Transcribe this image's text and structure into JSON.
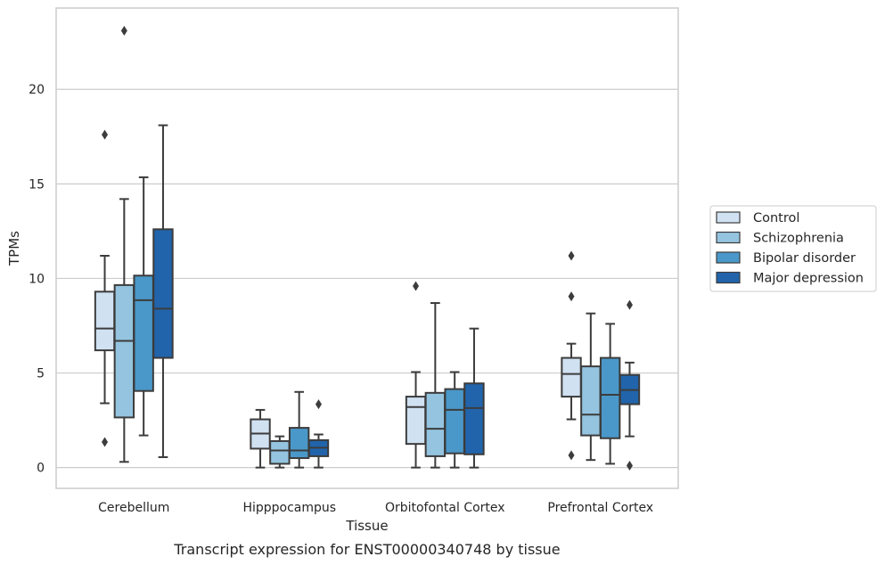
{
  "chart_data": {
    "type": "box",
    "caption": "Transcript expression for ENST00000340748 by tissue",
    "xlabel": "Tissue",
    "ylabel": "TPMs",
    "ylim": [
      -1.1,
      24.3
    ],
    "yticks": [
      0,
      5,
      10,
      15,
      20
    ],
    "grid": "horizontal",
    "legend": "right",
    "categories": [
      "Cerebellum",
      "Hipppocampus",
      "Orbitofontal Cortex",
      "Prefrontal Cortex"
    ],
    "series": [
      {
        "name": "Control",
        "color": "#d0e1f2",
        "boxes": [
          {
            "whislo": 3.4,
            "q1": 6.2,
            "med": 7.35,
            "q3": 9.3,
            "whishi": 11.2,
            "fliers": [
              17.6,
              1.35
            ]
          },
          {
            "whislo": 0.0,
            "q1": 1.0,
            "med": 1.8,
            "q3": 2.55,
            "whishi": 3.05,
            "fliers": []
          },
          {
            "whislo": 0.0,
            "q1": 1.25,
            "med": 3.2,
            "q3": 3.75,
            "whishi": 5.05,
            "fliers": [
              9.6
            ]
          },
          {
            "whislo": 2.55,
            "q1": 3.75,
            "med": 4.95,
            "q3": 5.8,
            "whishi": 6.55,
            "fliers": [
              11.2,
              9.05,
              0.65
            ]
          }
        ]
      },
      {
        "name": "Schizophrenia",
        "color": "#94c4df",
        "boxes": [
          {
            "whislo": 0.3,
            "q1": 2.65,
            "med": 6.7,
            "q3": 9.65,
            "whishi": 14.2,
            "fliers": [
              23.1
            ]
          },
          {
            "whislo": 0.0,
            "q1": 0.2,
            "med": 0.9,
            "q3": 1.4,
            "whishi": 1.65,
            "fliers": []
          },
          {
            "whislo": 0.0,
            "q1": 0.6,
            "med": 2.05,
            "q3": 3.95,
            "whishi": 8.7,
            "fliers": []
          },
          {
            "whislo": 0.4,
            "q1": 1.7,
            "med": 2.8,
            "q3": 5.35,
            "whishi": 8.15,
            "fliers": []
          }
        ]
      },
      {
        "name": "Bipolar disorder",
        "color": "#4a98c9",
        "boxes": [
          {
            "whislo": 1.7,
            "q1": 4.05,
            "med": 8.85,
            "q3": 10.15,
            "whishi": 15.35,
            "fliers": []
          },
          {
            "whislo": 0.0,
            "q1": 0.5,
            "med": 0.9,
            "q3": 2.1,
            "whishi": 4.0,
            "fliers": []
          },
          {
            "whislo": 0.0,
            "q1": 0.75,
            "med": 3.05,
            "q3": 4.15,
            "whishi": 5.05,
            "fliers": []
          },
          {
            "whislo": 0.2,
            "q1": 1.55,
            "med": 3.85,
            "q3": 5.8,
            "whishi": 7.6,
            "fliers": []
          }
        ]
      },
      {
        "name": "Major depression",
        "color": "#2164ab",
        "boxes": [
          {
            "whislo": 0.55,
            "q1": 5.8,
            "med": 8.4,
            "q3": 12.6,
            "whishi": 18.1,
            "fliers": []
          },
          {
            "whislo": 0.0,
            "q1": 0.6,
            "med": 1.05,
            "q3": 1.45,
            "whishi": 1.75,
            "fliers": [
              3.35
            ]
          },
          {
            "whislo": 0.0,
            "q1": 0.7,
            "med": 3.15,
            "q3": 4.45,
            "whishi": 7.35,
            "fliers": []
          },
          {
            "whislo": 1.65,
            "q1": 3.35,
            "med": 4.1,
            "q3": 4.9,
            "whishi": 5.55,
            "fliers": [
              8.6,
              0.1
            ]
          }
        ]
      }
    ]
  }
}
